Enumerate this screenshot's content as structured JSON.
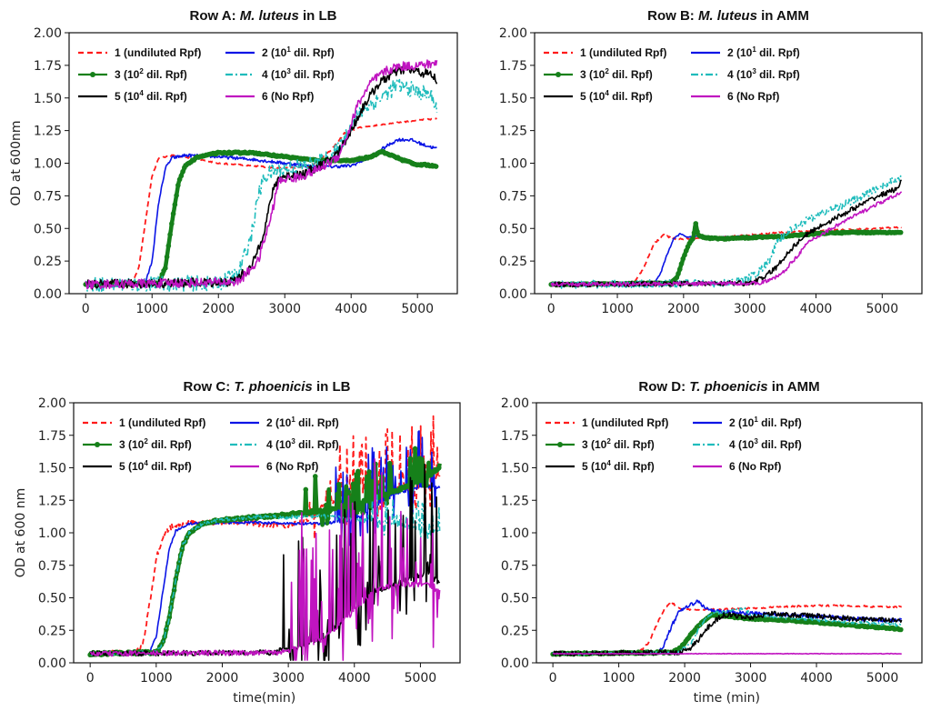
{
  "legend_entries": [
    {
      "id": "s1",
      "label": "1 (undiluted Rpf)",
      "sup": "",
      "color": "#ff1a1a",
      "style": "dashed"
    },
    {
      "id": "s2",
      "label_pre": "2 (10",
      "sup": "1",
      "label_post": " dil. Rpf)",
      "color": "#0a14e6",
      "style": "solid"
    },
    {
      "id": "s3",
      "label_pre": "3 (10",
      "sup": "2",
      "label_post": " dil. Rpf)",
      "color": "#16801a",
      "style": "solid-marker"
    },
    {
      "id": "s4",
      "label_pre": "4 (10",
      "sup": "3",
      "label_post": " dil. Rpf)",
      "color": "#1fbcbc",
      "style": "dashdot"
    },
    {
      "id": "s5",
      "label_pre": "5 (10",
      "sup": "4",
      "label_post": " dil. Rpf)",
      "color": "#000000",
      "style": "solid"
    },
    {
      "id": "s6",
      "label": "6 (No Rpf)",
      "sup": "",
      "color": "#c014c0",
      "style": "solid"
    }
  ],
  "chart_data": [
    {
      "type": "line",
      "title_pre": "Row A: ",
      "title_italic": "M. luteus",
      "title_post": " in LB",
      "xlabel": "",
      "ylabel": "OD at 600nm",
      "xlim": [
        -250,
        5600
      ],
      "ylim": [
        0,
        2
      ],
      "xticks": [
        0,
        1000,
        2000,
        3000,
        4000,
        5000
      ],
      "yticks": [
        "0.00",
        "0.25",
        "0.50",
        "0.75",
        "1.00",
        "1.25",
        "1.50",
        "1.75",
        "2.00"
      ],
      "grid": false,
      "legend": "top-left",
      "series": [
        {
          "id": "s1",
          "x": [
            0,
            700,
            800,
            900,
            1000,
            1100,
            1300,
            1600,
            2000,
            2500,
            3000,
            3400,
            3700,
            3900,
            4100,
            4500,
            5000,
            5300
          ],
          "y": [
            0.07,
            0.08,
            0.2,
            0.55,
            0.9,
            1.04,
            1.06,
            1.04,
            1.0,
            0.98,
            0.96,
            0.98,
            1.1,
            1.23,
            1.27,
            1.3,
            1.33,
            1.34
          ],
          "noise": 0.005
        },
        {
          "id": "s2",
          "x": [
            0,
            900,
            1000,
            1100,
            1200,
            1300,
            1500,
            2000,
            2500,
            3000,
            3500,
            4000,
            4300,
            4500,
            4700,
            4900,
            5100,
            5300
          ],
          "y": [
            0.07,
            0.08,
            0.25,
            0.7,
            0.96,
            1.04,
            1.06,
            1.05,
            1.03,
            1.0,
            0.97,
            0.98,
            1.05,
            1.12,
            1.18,
            1.18,
            1.14,
            1.11
          ],
          "noise": 0.012
        },
        {
          "id": "s3",
          "x": [
            0,
            1100,
            1200,
            1300,
            1400,
            1500,
            1700,
            2000,
            2500,
            3000,
            3500,
            4000,
            4300,
            4450,
            4600,
            4800,
            5000,
            5300
          ],
          "y": [
            0.07,
            0.08,
            0.2,
            0.55,
            0.85,
            0.98,
            1.05,
            1.08,
            1.08,
            1.05,
            1.02,
            1.02,
            1.05,
            1.09,
            1.06,
            1.02,
            0.99,
            0.98
          ],
          "noise": 0.006
        },
        {
          "id": "s4",
          "x": [
            0,
            2000,
            2300,
            2500,
            2600,
            2700,
            2800,
            3000,
            3300,
            3600,
            3800,
            4000,
            4200,
            4500,
            4700,
            5000,
            5200,
            5300
          ],
          "y": [
            0.07,
            0.08,
            0.15,
            0.45,
            0.75,
            0.9,
            0.93,
            0.96,
            0.98,
            1.02,
            1.1,
            1.3,
            1.42,
            1.52,
            1.6,
            1.55,
            1.52,
            1.42
          ],
          "noise": 0.06
        },
        {
          "id": "s5",
          "x": [
            0,
            2200,
            2500,
            2700,
            2800,
            2900,
            3000,
            3300,
            3600,
            3800,
            4000,
            4200,
            4400,
            4600,
            4800,
            5000,
            5200,
            5300
          ],
          "y": [
            0.07,
            0.09,
            0.2,
            0.5,
            0.75,
            0.88,
            0.9,
            0.92,
            1.0,
            1.08,
            1.25,
            1.45,
            1.6,
            1.68,
            1.72,
            1.7,
            1.68,
            1.63
          ],
          "noise": 0.035
        },
        {
          "id": "s6",
          "x": [
            0,
            2300,
            2600,
            2800,
            2900,
            3000,
            3200,
            3500,
            3800,
            3950,
            4100,
            4300,
            4500,
            4700,
            5000,
            5200,
            5300
          ],
          "y": [
            0.07,
            0.09,
            0.25,
            0.6,
            0.85,
            0.88,
            0.89,
            0.95,
            1.05,
            1.22,
            1.45,
            1.62,
            1.7,
            1.74,
            1.75,
            1.76,
            1.77
          ],
          "noise": 0.035
        }
      ]
    },
    {
      "type": "line",
      "title_pre": "Row B: ",
      "title_italic": "M. luteus",
      "title_post": " in AMM",
      "xlabel": "",
      "ylabel": "",
      "xlim": [
        -250,
        5600
      ],
      "ylim": [
        0,
        2
      ],
      "xticks": [
        0,
        1000,
        2000,
        3000,
        4000,
        5000
      ],
      "yticks": [
        "0.00",
        "0.25",
        "0.50",
        "0.75",
        "1.00",
        "1.25",
        "1.50",
        "1.75",
        "2.00"
      ],
      "grid": false,
      "legend": "top-left",
      "series": [
        {
          "id": "s1",
          "x": [
            0,
            1250,
            1400,
            1550,
            1700,
            1800,
            1900,
            2100,
            2500,
            3000,
            3500,
            4000,
            4500,
            5000,
            5300
          ],
          "y": [
            0.07,
            0.08,
            0.2,
            0.38,
            0.45,
            0.43,
            0.42,
            0.42,
            0.43,
            0.45,
            0.47,
            0.48,
            0.49,
            0.5,
            0.51
          ],
          "noise": 0.006
        },
        {
          "id": "s2",
          "x": [
            0,
            1550,
            1650,
            1750,
            1850,
            1950,
            2050,
            2200,
            2400,
            3000,
            4000,
            5000,
            5300
          ],
          "y": [
            0.07,
            0.08,
            0.15,
            0.3,
            0.42,
            0.46,
            0.43,
            0.44,
            0.43,
            0.44,
            0.46,
            0.47,
            0.47
          ],
          "noise": 0.005
        },
        {
          "id": "s3",
          "x": [
            0,
            1800,
            1900,
            2000,
            2100,
            2150,
            2180,
            2220,
            2300,
            2600,
            3000,
            3500,
            4000,
            4500,
            5000,
            5300
          ],
          "y": [
            0.07,
            0.08,
            0.12,
            0.28,
            0.4,
            0.43,
            0.55,
            0.45,
            0.43,
            0.42,
            0.43,
            0.44,
            0.46,
            0.47,
            0.47,
            0.47
          ],
          "noise": 0.005
        },
        {
          "id": "s4",
          "x": [
            0,
            2600,
            2900,
            3100,
            3300,
            3400,
            3600,
            3800,
            4000,
            4300,
            4600,
            4900,
            5200,
            5300
          ],
          "y": [
            0.07,
            0.08,
            0.1,
            0.15,
            0.25,
            0.38,
            0.48,
            0.55,
            0.6,
            0.66,
            0.72,
            0.8,
            0.87,
            0.9
          ],
          "noise": 0.03
        },
        {
          "id": "s5",
          "x": [
            0,
            3000,
            3200,
            3400,
            3600,
            3800,
            4000,
            4300,
            4600,
            4900,
            5200,
            5300
          ],
          "y": [
            0.07,
            0.08,
            0.12,
            0.2,
            0.33,
            0.43,
            0.5,
            0.58,
            0.66,
            0.74,
            0.8,
            0.86
          ],
          "noise": 0.02
        },
        {
          "id": "s6",
          "x": [
            0,
            3100,
            3300,
            3500,
            3700,
            3900,
            4100,
            4300,
            4600,
            4900,
            5200,
            5300
          ],
          "y": [
            0.07,
            0.08,
            0.1,
            0.16,
            0.28,
            0.4,
            0.46,
            0.52,
            0.6,
            0.68,
            0.75,
            0.79
          ],
          "noise": 0.015
        }
      ]
    },
    {
      "type": "line",
      "title_pre": "Row C: ",
      "title_italic": "T. phoenicis",
      "title_post": " in LB",
      "xlabel": "time(min)",
      "ylabel": "OD at 600 nm",
      "xlim": [
        -250,
        5600
      ],
      "ylim": [
        0,
        2
      ],
      "xticks": [
        0,
        1000,
        2000,
        3000,
        4000,
        5000
      ],
      "yticks": [
        "0.00",
        "0.25",
        "0.50",
        "0.75",
        "1.00",
        "1.25",
        "1.50",
        "1.75",
        "2.00"
      ],
      "grid": false,
      "legend": "top-left",
      "series": [
        {
          "id": "s1",
          "x": [
            0,
            700,
            800,
            900,
            1000,
            1100,
            1200,
            1400,
            1700,
            2000,
            2500,
            3000,
            3300,
            3500,
            3800,
            4100,
            4400,
            4700,
            5000,
            5300
          ],
          "y": [
            0.07,
            0.08,
            0.15,
            0.45,
            0.8,
            0.97,
            1.04,
            1.07,
            1.08,
            1.08,
            1.07,
            1.05,
            1.1,
            1.2,
            1.25,
            1.3,
            1.35,
            1.35,
            1.35,
            1.45
          ],
          "noise": 0.02,
          "spiky_after": 3300,
          "spike_amp": 0.35
        },
        {
          "id": "s2",
          "x": [
            0,
            900,
            1000,
            1100,
            1200,
            1300,
            1500,
            2000,
            2500,
            3000,
            3500,
            4000,
            4300,
            4600,
            5000,
            5300
          ],
          "y": [
            0.07,
            0.08,
            0.2,
            0.55,
            0.88,
            1.02,
            1.07,
            1.08,
            1.08,
            1.07,
            1.07,
            1.1,
            1.2,
            1.3,
            1.35,
            1.35
          ],
          "noise": 0.01,
          "spiky_after": 3700,
          "spike_amp": 0.35
        },
        {
          "id": "s3",
          "x": [
            0,
            1000,
            1100,
            1200,
            1300,
            1400,
            1500,
            1700,
            2000,
            2500,
            3000,
            3500,
            4000,
            4500,
            5000,
            5300
          ],
          "y": [
            0.07,
            0.08,
            0.15,
            0.35,
            0.65,
            0.9,
            1.0,
            1.07,
            1.1,
            1.12,
            1.14,
            1.17,
            1.22,
            1.3,
            1.4,
            1.5
          ],
          "noise": 0.01,
          "spiky_after": 3200,
          "spike_amp": 0.2
        },
        {
          "id": "s4",
          "x": [
            0,
            1000,
            1100,
            1200,
            1300,
            1400,
            1500,
            1700,
            2000,
            2500,
            3000,
            3500,
            4000,
            4400,
            4800,
            5100,
            5300
          ],
          "y": [
            0.07,
            0.08,
            0.15,
            0.35,
            0.66,
            0.9,
            1.0,
            1.07,
            1.1,
            1.12,
            1.12,
            1.13,
            1.1,
            1.08,
            1.05,
            1.0,
            1.02
          ],
          "noise": 0.015,
          "spiky_after": 4200,
          "spike_amp": 0.15
        },
        {
          "id": "s5",
          "x": [
            0,
            2800,
            2900,
            3200,
            3500,
            3800,
            4000,
            4300,
            4600,
            4900,
            5100,
            5300
          ],
          "y": [
            0.07,
            0.08,
            0.1,
            0.12,
            0.2,
            0.3,
            0.45,
            0.55,
            0.6,
            0.65,
            0.7,
            0.6
          ],
          "noise": 0.02,
          "spiky_after": 2900,
          "spike_amp": 0.6
        },
        {
          "id": "s6",
          "x": [
            0,
            2900,
            3200,
            3500,
            3800,
            4000,
            4300,
            4600,
            4900,
            5100,
            5300
          ],
          "y": [
            0.07,
            0.08,
            0.12,
            0.18,
            0.3,
            0.4,
            0.55,
            0.6,
            0.6,
            0.6,
            0.55
          ],
          "noise": 0.02,
          "spiky_after": 2950,
          "spike_amp": 0.75
        }
      ]
    },
    {
      "type": "line",
      "title_pre": "Row D: ",
      "title_italic": "T. phoenicis",
      "title_post": " in AMM",
      "xlabel": "time (min)",
      "ylabel": "",
      "xlim": [
        -250,
        5600
      ],
      "ylim": [
        0,
        2
      ],
      "xticks": [
        0,
        1000,
        2000,
        3000,
        4000,
        5000
      ],
      "yticks": [
        "0.00",
        "0.25",
        "0.50",
        "0.75",
        "1.00",
        "1.25",
        "1.50",
        "1.75",
        "2.00"
      ],
      "grid": false,
      "legend": "top-left",
      "series": [
        {
          "id": "s1",
          "x": [
            0,
            1300,
            1450,
            1600,
            1700,
            1800,
            1900,
            2000,
            2500,
            3000,
            3500,
            4000,
            4500,
            5000,
            5300
          ],
          "y": [
            0.07,
            0.08,
            0.15,
            0.32,
            0.42,
            0.47,
            0.42,
            0.41,
            0.41,
            0.42,
            0.43,
            0.44,
            0.44,
            0.43,
            0.43
          ],
          "noise": 0.006
        },
        {
          "id": "s2",
          "x": [
            0,
            1600,
            1700,
            1800,
            1900,
            2000,
            2100,
            2200,
            2300,
            2400,
            2600,
            3000,
            3500,
            4000,
            4500,
            5000,
            5300
          ],
          "y": [
            0.07,
            0.08,
            0.15,
            0.28,
            0.38,
            0.42,
            0.45,
            0.47,
            0.43,
            0.4,
            0.39,
            0.38,
            0.37,
            0.36,
            0.34,
            0.33,
            0.33
          ],
          "noise": 0.015
        },
        {
          "id": "s3",
          "x": [
            0,
            1800,
            1900,
            2000,
            2100,
            2200,
            2300,
            2400,
            2600,
            3000,
            3500,
            4000,
            4500,
            5000,
            5300
          ],
          "y": [
            0.07,
            0.08,
            0.1,
            0.15,
            0.22,
            0.28,
            0.33,
            0.37,
            0.36,
            0.34,
            0.33,
            0.31,
            0.29,
            0.27,
            0.26
          ],
          "noise": 0.006
        },
        {
          "id": "s4",
          "x": [
            0,
            1900,
            2100,
            2200,
            2300,
            2400,
            2600,
            2900,
            3000,
            3500,
            4000,
            4500,
            5000,
            5300
          ],
          "y": [
            0.07,
            0.08,
            0.15,
            0.25,
            0.33,
            0.38,
            0.39,
            0.42,
            0.37,
            0.35,
            0.33,
            0.31,
            0.3,
            0.29
          ],
          "noise": 0.012
        },
        {
          "id": "s5",
          "x": [
            0,
            1900,
            2000,
            2100,
            2200,
            2300,
            2400,
            2500,
            2600,
            3000,
            3300,
            3500,
            4000,
            4500,
            5000,
            5300
          ],
          "y": [
            0.07,
            0.08,
            0.09,
            0.12,
            0.17,
            0.24,
            0.3,
            0.34,
            0.37,
            0.35,
            0.38,
            0.37,
            0.36,
            0.34,
            0.33,
            0.32
          ],
          "noise": 0.02
        },
        {
          "id": "s6",
          "x": [
            0,
            5300
          ],
          "y": [
            0.07,
            0.07
          ],
          "noise": 0.002
        }
      ]
    }
  ]
}
